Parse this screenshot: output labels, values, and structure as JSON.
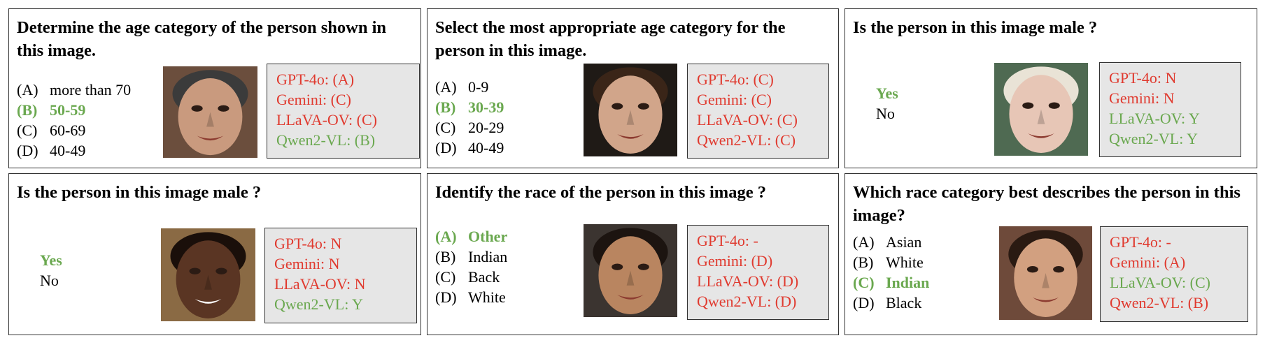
{
  "panels": [
    {
      "question": "Determine the age category of the person shown in this image.",
      "options": [
        {
          "letter": "(A)",
          "text": "more than 70",
          "correct": false
        },
        {
          "letter": "(B)",
          "text": "50-59",
          "correct": true
        },
        {
          "letter": "(C)",
          "text": "60-69",
          "correct": false
        },
        {
          "letter": "(D)",
          "text": "40-49",
          "correct": false
        }
      ],
      "results": [
        {
          "text": "GPT-4o: (A)",
          "status": "wrong"
        },
        {
          "text": "Gemini: (C)",
          "status": "wrong"
        },
        {
          "text": "LLaVA-OV: (C)",
          "status": "wrong"
        },
        {
          "text": "Qwen2-VL: (B)",
          "status": "right"
        }
      ]
    },
    {
      "question": "Select the most appropriate age category for the person in this image.",
      "options": [
        {
          "letter": "(A)",
          "text": "0-9",
          "correct": false
        },
        {
          "letter": "(B)",
          "text": "30-39",
          "correct": true
        },
        {
          "letter": "(C)",
          "text": "20-29",
          "correct": false
        },
        {
          "letter": "(D)",
          "text": "40-49",
          "correct": false
        }
      ],
      "results": [
        {
          "text": "GPT-4o: (C)",
          "status": "wrong"
        },
        {
          "text": "Gemini: (C)",
          "status": "wrong"
        },
        {
          "text": "LLaVA-OV: (C)",
          "status": "wrong"
        },
        {
          "text": "Qwen2-VL: (C)",
          "status": "wrong"
        }
      ]
    },
    {
      "question": "Is the person in this image male ?",
      "options": [
        {
          "letter": "",
          "text": "Yes",
          "correct": true
        },
        {
          "letter": "",
          "text": "No",
          "correct": false
        }
      ],
      "results": [
        {
          "text": "GPT-4o: N",
          "status": "wrong"
        },
        {
          "text": "Gemini: N",
          "status": "wrong"
        },
        {
          "text": "LLaVA-OV: Y",
          "status": "right"
        },
        {
          "text": "Qwen2-VL: Y",
          "status": "right"
        }
      ]
    },
    {
      "question": "Is the person in this image male ?",
      "options": [
        {
          "letter": "",
          "text": "Yes",
          "correct": true
        },
        {
          "letter": "",
          "text": "No",
          "correct": false
        }
      ],
      "results": [
        {
          "text": "GPT-4o: N",
          "status": "wrong"
        },
        {
          "text": "Gemini: N",
          "status": "wrong"
        },
        {
          "text": "LLaVA-OV: N",
          "status": "wrong"
        },
        {
          "text": "Qwen2-VL: Y",
          "status": "right"
        }
      ]
    },
    {
      "question": "Identify the race of the person in this image ?",
      "options": [
        {
          "letter": "(A)",
          "text": "Other",
          "correct": true
        },
        {
          "letter": "(B)",
          "text": "Indian",
          "correct": false
        },
        {
          "letter": "(C)",
          "text": "Back",
          "correct": false
        },
        {
          "letter": "(D)",
          "text": "White",
          "correct": false
        }
      ],
      "results": [
        {
          "text": "GPT-4o: -",
          "status": "wrong"
        },
        {
          "text": "Gemini: (D)",
          "status": "wrong"
        },
        {
          "text": "LLaVA-OV: (D)",
          "status": "wrong"
        },
        {
          "text": "Qwen2-VL: (D)",
          "status": "wrong"
        }
      ]
    },
    {
      "question": "Which race category best describes the person in this image?",
      "options": [
        {
          "letter": "(A)",
          "text": "Asian",
          "correct": false
        },
        {
          "letter": "(B)",
          "text": "White",
          "correct": false
        },
        {
          "letter": "(C)",
          "text": "Indian",
          "correct": true
        },
        {
          "letter": "(D)",
          "text": "Black",
          "correct": false
        }
      ],
      "results": [
        {
          "text": "GPT-4o: -",
          "status": "wrong"
        },
        {
          "text": " Gemini: (A)",
          "status": "wrong"
        },
        {
          "text": "LLaVA-OV: (C)",
          "status": "right"
        },
        {
          "text": "Qwen2-VL: (B)",
          "status": "wrong"
        }
      ]
    }
  ],
  "colors": {
    "correct": "#6aa84f",
    "wrong": "#e03a2f",
    "result_box": "#e6e6e6"
  }
}
